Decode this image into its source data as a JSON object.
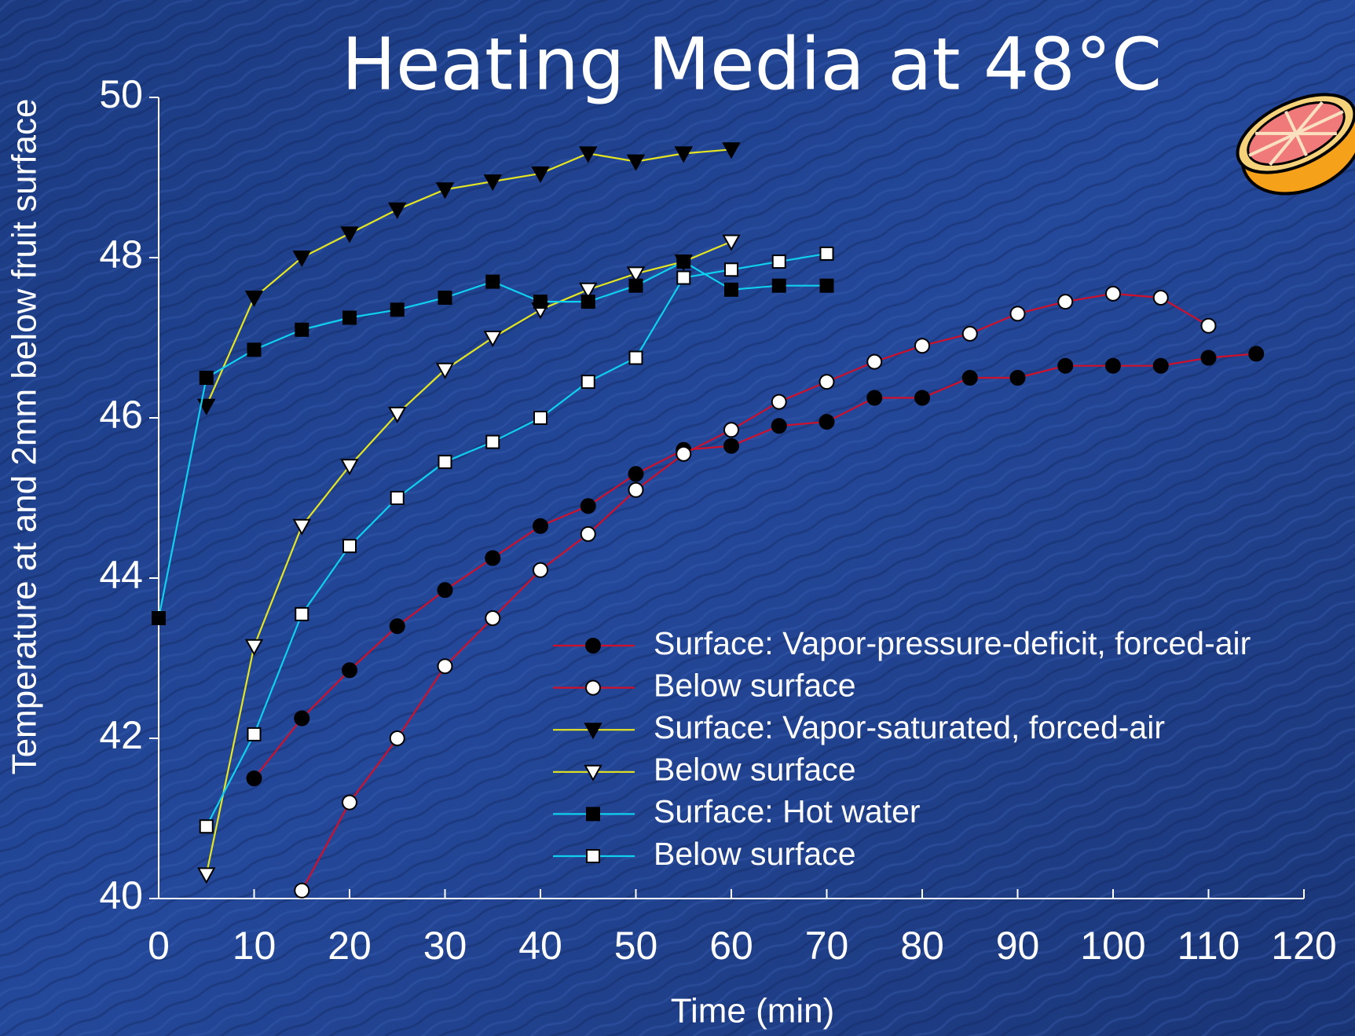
{
  "chart_data": {
    "type": "line",
    "title": "Heating Media at 48°C",
    "x_label": "Time (min)",
    "y_label": "Temperature at and 2mm below fruit surface",
    "xlim": [
      0,
      120
    ],
    "xticks": [
      0,
      10,
      20,
      30,
      40,
      50,
      60,
      70,
      80,
      90,
      100,
      110,
      120
    ],
    "ylim": [
      40,
      50
    ],
    "yticks": [
      40,
      42,
      44,
      46,
      48,
      50
    ],
    "series": [
      {
        "name": "Surface: Vapor-pressure-deficit, forced-air",
        "color": "#d0102a",
        "marker": "circle",
        "marker_fill": "#000000",
        "x": [
          10,
          15,
          20,
          25,
          30,
          35,
          40,
          45,
          50,
          55,
          60,
          65,
          70,
          75,
          80,
          85,
          90,
          95,
          100,
          105,
          110,
          115
        ],
        "values": [
          41.5,
          42.25,
          42.85,
          43.4,
          43.85,
          44.25,
          44.65,
          44.9,
          45.3,
          45.6,
          45.65,
          45.9,
          45.95,
          46.25,
          46.25,
          46.5,
          46.5,
          46.65,
          46.65,
          46.65,
          46.75,
          46.8
        ]
      },
      {
        "name": "Below surface",
        "color": "#d0102a",
        "marker": "circle",
        "marker_fill": "#ffffff",
        "x": [
          15,
          20,
          25,
          30,
          35,
          40,
          45,
          50,
          55,
          60,
          65,
          70,
          75,
          80,
          85,
          90,
          95,
          100,
          105,
          110
        ],
        "values": [
          40.1,
          41.2,
          42.0,
          42.9,
          43.5,
          44.1,
          44.55,
          45.1,
          45.55,
          45.85,
          46.2,
          46.45,
          46.7,
          46.9,
          47.05,
          47.3,
          47.45,
          47.55,
          47.5,
          47.15
        ]
      },
      {
        "name": "Surface: Vapor-saturated, forced-air",
        "color": "#e6e620",
        "marker": "triangle",
        "marker_fill": "#000000",
        "x": [
          5,
          10,
          15,
          20,
          25,
          30,
          35,
          40,
          45,
          50,
          55,
          60
        ],
        "values": [
          46.15,
          47.5,
          48.0,
          48.3,
          48.6,
          48.85,
          48.95,
          49.05,
          49.3,
          49.2,
          49.3,
          49.35
        ]
      },
      {
        "name": "Below surface",
        "color": "#e6e620",
        "marker": "triangle",
        "marker_fill": "#ffffff",
        "x": [
          5,
          10,
          15,
          20,
          25,
          30,
          35,
          40,
          45,
          50,
          55,
          60
        ],
        "values": [
          40.3,
          43.15,
          44.65,
          45.4,
          46.05,
          46.6,
          47.0,
          47.35,
          47.6,
          47.8,
          47.95,
          48.2
        ]
      },
      {
        "name": "Surface: Hot water",
        "color": "#10d0f0",
        "marker": "square",
        "marker_fill": "#000000",
        "x": [
          0,
          5,
          10,
          15,
          20,
          25,
          30,
          35,
          40,
          45,
          50,
          55,
          60,
          65,
          70
        ],
        "values": [
          43.5,
          46.5,
          46.85,
          47.1,
          47.25,
          47.35,
          47.5,
          47.7,
          47.45,
          47.45,
          47.65,
          47.95,
          47.6,
          47.65,
          47.65
        ]
      },
      {
        "name": "Below surface",
        "color": "#10d0f0",
        "marker": "square",
        "marker_fill": "#ffffff",
        "x": [
          5,
          10,
          15,
          20,
          25,
          30,
          35,
          40,
          45,
          50,
          55,
          60,
          65,
          70
        ],
        "values": [
          40.9,
          42.05,
          43.55,
          44.4,
          45.0,
          45.45,
          45.7,
          46.0,
          46.45,
          46.75,
          47.75,
          47.85,
          47.95,
          48.05
        ]
      }
    ]
  }
}
